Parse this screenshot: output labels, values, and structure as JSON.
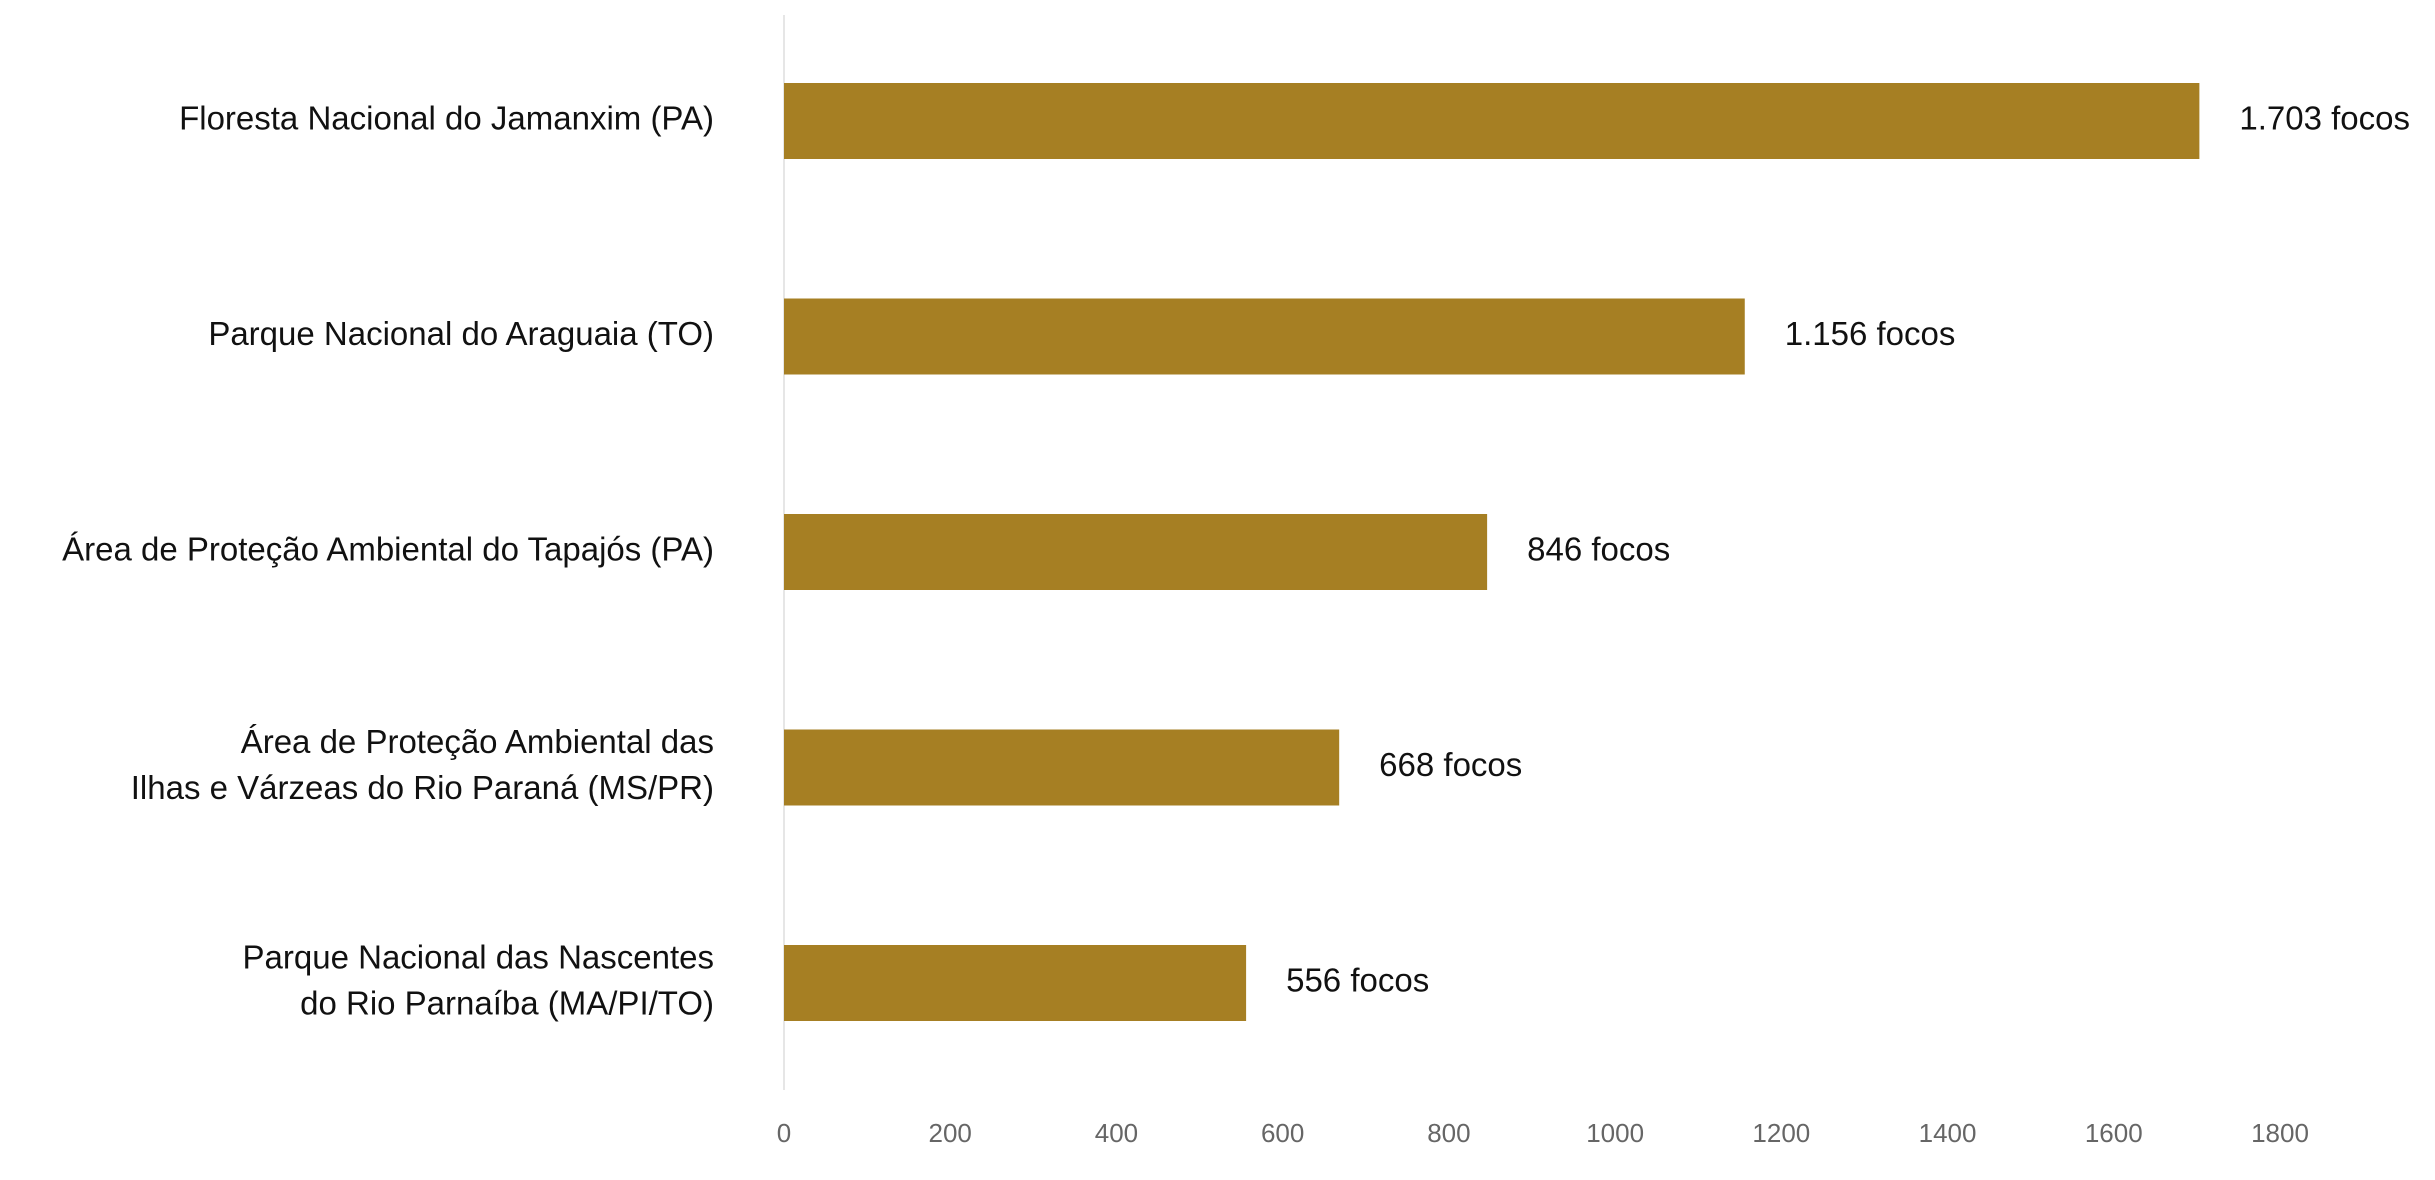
{
  "chart_data": {
    "type": "barh",
    "categories": [
      [
        "Floresta Nacional do Jamanxim (PA)"
      ],
      [
        "Parque Nacional do Araguaia (TO)"
      ],
      [
        "Área de Proteção Ambiental do Tapajós (PA)"
      ],
      [
        "Área de Proteção Ambiental das",
        "Ilhas e Várzeas do Rio Paraná (MS/PR)"
      ],
      [
        "Parque Nacional das Nascentes",
        "do Rio Parnaíba (MA/PI/TO)"
      ]
    ],
    "values": [
      1703,
      1156,
      846,
      668,
      556
    ],
    "value_labels": [
      "1.703 focos",
      "1.156 focos",
      "846 focos",
      "668 focos",
      "556 focos"
    ],
    "color": "#a67f23",
    "xlim": [
      0,
      1800
    ],
    "xticks": [
      0,
      200,
      400,
      600,
      800,
      1000,
      1200,
      1400,
      1600,
      1800
    ],
    "grid": false
  }
}
